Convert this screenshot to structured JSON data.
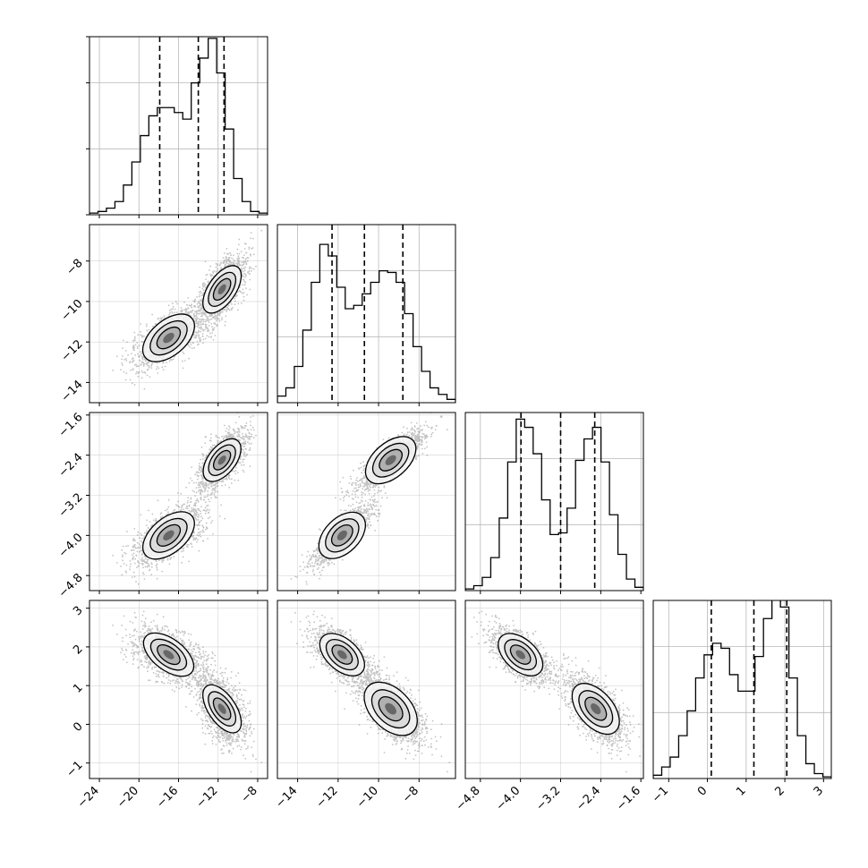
{
  "chart_data": {
    "type": "corner",
    "parameters": [
      {
        "range": [
          -25,
          -7
        ],
        "ticks": [
          -24,
          -20,
          -16,
          -12,
          -8
        ],
        "tick_labels": [
          "−24",
          "−20",
          "−16",
          "−12",
          "−8"
        ],
        "quantiles": [
          -17.9,
          -14.0,
          -11.4
        ],
        "hist_values": [
          1,
          2,
          4,
          8,
          18,
          32,
          48,
          60,
          65,
          65,
          62,
          58,
          80,
          95,
          107,
          86,
          52,
          22,
          8,
          2,
          1
        ]
      },
      {
        "range": [
          -15,
          -6.2
        ],
        "ticks": [
          -14,
          -12,
          -10,
          -8
        ],
        "tick_labels": [
          "−14",
          "−12",
          "−10",
          "−8"
        ],
        "quantiles": [
          -12.3,
          -10.7,
          -8.8
        ],
        "hist_values": [
          4,
          9,
          22,
          44,
          73,
          96,
          89,
          70,
          57,
          59,
          66,
          73,
          80,
          79,
          73,
          54,
          34,
          19,
          9,
          5,
          2
        ]
      },
      {
        "range": [
          -5.1,
          -1.55
        ],
        "ticks": [
          -4.8,
          -4.0,
          -3.2,
          -2.4,
          -1.6
        ],
        "tick_labels": [
          "−4.8",
          "−4.0",
          "−3.2",
          "−2.4",
          "−1.6"
        ],
        "quantiles": [
          -3.99,
          -3.2,
          -2.52
        ],
        "hist_values": [
          1,
          3,
          8,
          20,
          44,
          78,
          104,
          99,
          83,
          55,
          34,
          35,
          50,
          79,
          92,
          99,
          78,
          46,
          22,
          7,
          2
        ]
      },
      {
        "range": [
          -1.4,
          3.2
        ],
        "ticks": [
          -1,
          0,
          1,
          2,
          3
        ],
        "tick_labels": [
          "−1",
          "0",
          "1",
          "2",
          "3"
        ],
        "quantiles": [
          0.1,
          1.2,
          2.05
        ],
        "hist_values": [
          2,
          7,
          13,
          26,
          41,
          61,
          75,
          82,
          79,
          63,
          53,
          53,
          74,
          97,
          113,
          104,
          61,
          26,
          9,
          3,
          1
        ]
      }
    ],
    "row_tick_labels": [
      null,
      [
        "−8",
        "−10",
        "−12",
        "−14"
      ],
      [
        "−1.6",
        "−2.4",
        "−3.2",
        "−4.0",
        "−4.8"
      ],
      [
        "3",
        "2",
        "1",
        "0",
        "−1"
      ]
    ],
    "hist_ymax": 108,
    "hist_y_gridlines": [
      0,
      40,
      80
    ],
    "row_ticks": [
      null,
      [
        -8,
        -10,
        -12,
        -14
      ],
      [
        -1.6,
        -2.4,
        -3.2,
        -4.0,
        -4.8
      ],
      [
        3,
        2,
        1,
        0,
        -1
      ]
    ],
    "mixture": {
      "weights": [
        0.48,
        0.52
      ],
      "means": [
        [
          -17,
          -11.8,
          -4.0,
          1.8
        ],
        [
          -11.6,
          -9.4,
          -2.5,
          0.4
        ]
      ],
      "sds": [
        [
          1.8,
          0.75,
          0.3,
          0.35
        ],
        [
          1.2,
          0.85,
          0.3,
          0.45
        ]
      ]
    }
  }
}
